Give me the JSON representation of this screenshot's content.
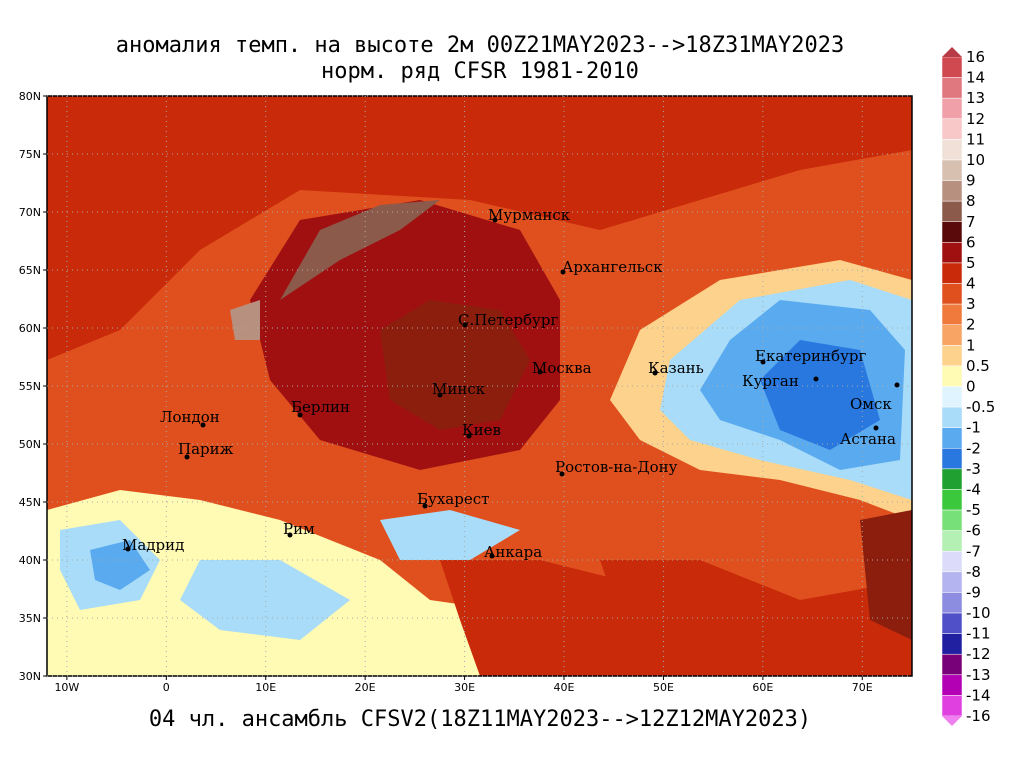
{
  "title": [
    "аномалия темп. на высоте 2м 00Z21MAY2023-->18Z31MAY2023",
    "норм. ряд CFSR 1981-2010"
  ],
  "footer": "04 чл. ансамбль CFSV2(18Z11MAY2023-->12Z12MAY2023)",
  "map": {
    "lon_range": [
      -12,
      75
    ],
    "lat_range": [
      30,
      80
    ],
    "lon_ticks": [
      {
        "value": -10,
        "label": "10W"
      },
      {
        "value": 0,
        "label": "0"
      },
      {
        "value": 10,
        "label": "10E"
      },
      {
        "value": 20,
        "label": "20E"
      },
      {
        "value": 30,
        "label": "30E"
      },
      {
        "value": 40,
        "label": "40E"
      },
      {
        "value": 50,
        "label": "50E"
      },
      {
        "value": 60,
        "label": "60E"
      },
      {
        "value": 70,
        "label": "70E"
      }
    ],
    "lat_ticks": [
      {
        "value": 30,
        "label": "30N"
      },
      {
        "value": 35,
        "label": "35N"
      },
      {
        "value": 40,
        "label": "40N"
      },
      {
        "value": 45,
        "label": "45N"
      },
      {
        "value": 50,
        "label": "50N"
      },
      {
        "value": 55,
        "label": "55N"
      },
      {
        "value": 60,
        "label": "60N"
      },
      {
        "value": 65,
        "label": "65N"
      },
      {
        "value": 70,
        "label": "70N"
      },
      {
        "value": 75,
        "label": "75N"
      },
      {
        "value": 80,
        "label": "80N"
      }
    ],
    "grid": true,
    "cities": [
      "Мурманск",
      "Архангельск",
      "С.Петербург",
      "Москва",
      "Казань",
      "Екатеринбург",
      "Курган",
      "Омск",
      "Астана",
      "Минск",
      "Берлин",
      "Лондон",
      "Париж",
      "Киев",
      "Ростов-на-Дону",
      "Бухарест",
      "Рим",
      "Мадрид",
      "Анкара"
    ]
  },
  "colorbar": {
    "levels": [
      16,
      14,
      13,
      12,
      11,
      10,
      9,
      8,
      7,
      6,
      5,
      4,
      3,
      2,
      1,
      0.5,
      0,
      -0.5,
      -1,
      -2,
      -3,
      -4,
      -5,
      -6,
      -7,
      -8,
      -9,
      -10,
      -11,
      -12,
      -13,
      -14,
      -16
    ],
    "colors": [
      "#d04850",
      "#e07880",
      "#f0a0a8",
      "#f8c8c8",
      "#f0e0d8",
      "#d8c0b0",
      "#b89080",
      "#8c5a4a",
      "#5a0a0a",
      "#a01010",
      "#c82a0a",
      "#e0501e",
      "#f07a3c",
      "#f8a464",
      "#fcd28c",
      "#fffab4",
      "#e0f4ff",
      "#a8dcf8",
      "#5aaaf0",
      "#2878e0",
      "#20a030",
      "#3cc83c",
      "#78e078",
      "#b4f0b4",
      "#dcdcfa",
      "#b4b4f0",
      "#8c8ce0",
      "#5050c8",
      "#2020a0",
      "#780078",
      "#b400b4",
      "#e040e0"
    ]
  }
}
